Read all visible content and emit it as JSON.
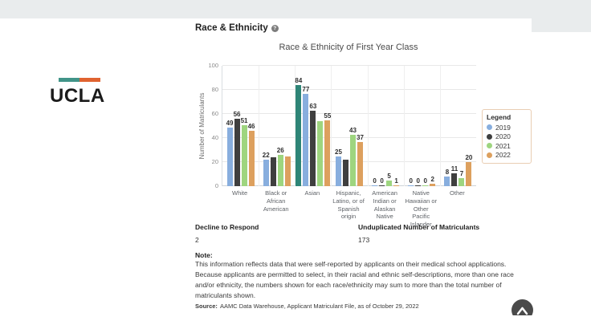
{
  "theme": {
    "topbar_color": "#e9eced",
    "logo_bar_teal": "#419488",
    "logo_bar_orange": "#e06330"
  },
  "logo": {
    "text": "UCLA"
  },
  "section": {
    "title": "Race & Ethnicity",
    "info_icon_glyph": "?"
  },
  "chart_data": {
    "type": "bar",
    "title": "Race & Ethnicity of First Year Class",
    "xlabel": "",
    "ylabel": "Number of Matriculants",
    "ylim": [
      0,
      100
    ],
    "yticks": [
      0,
      20,
      40,
      60,
      80,
      100
    ],
    "grid": true,
    "legend": {
      "title": "Legend",
      "position": "right",
      "entries": [
        {
          "label": "2019",
          "color": "#88aede"
        },
        {
          "label": "2020",
          "color": "#3f3f3f"
        },
        {
          "label": "2021",
          "color": "#9ed57f"
        },
        {
          "label": "2022",
          "color": "#dda05e"
        }
      ]
    },
    "categories": [
      "White",
      "Black or African American",
      "Asian",
      "Hispanic, Latino, or of Spanish origin",
      "American Indian or Alaskan Native",
      "Native Hawaiian or Other Pacific Islander",
      "Other"
    ],
    "series": [
      {
        "name": "2019",
        "color": "#88aede",
        "values": [
          49,
          22,
          77,
          25,
          0,
          0,
          8
        ],
        "labels": [
          "49",
          "22",
          "77",
          "25",
          "0",
          "0",
          "8"
        ]
      },
      {
        "name": "2020",
        "color": "#3f3f3f",
        "values": [
          56,
          24,
          63,
          22,
          0,
          0,
          11
        ],
        "labels": [
          "56",
          null,
          "63",
          null,
          "0",
          "0",
          "11"
        ]
      },
      {
        "name": "2021",
        "color": "#9ed57f",
        "values": [
          51,
          26,
          54,
          43,
          5,
          0,
          7
        ],
        "labels": [
          "51",
          "26",
          null,
          "43",
          "5",
          "0",
          "7"
        ]
      },
      {
        "name": "2022",
        "color": "#dda05e",
        "values": [
          46,
          25,
          55,
          37,
          1,
          2,
          20
        ],
        "labels": [
          "46",
          null,
          "55",
          "37",
          "1",
          "2",
          "20"
        ]
      }
    ],
    "highlight_bar": {
      "category": "Asian",
      "value": 84,
      "label": "84",
      "color": "#2e8577"
    }
  },
  "stats": [
    {
      "label": "Decline to Respond",
      "value": "2"
    },
    {
      "label": "Unduplicated Number of Matriculants",
      "value": "173"
    }
  ],
  "note": {
    "label": "Note:",
    "text": "This information reflects data that were self-reported by applicants on their medical school applications. Because applicants are permitted to select, in their racial and ethnic self-descriptions, more than one race and/or ethnicity, the numbers shown for each race/ethnicity may sum to more than the total number of matriculants shown."
  },
  "source": {
    "label": "Source:",
    "text": "AAMC Data Warehouse, Applicant Matriculant File, as of October 29, 2022"
  }
}
